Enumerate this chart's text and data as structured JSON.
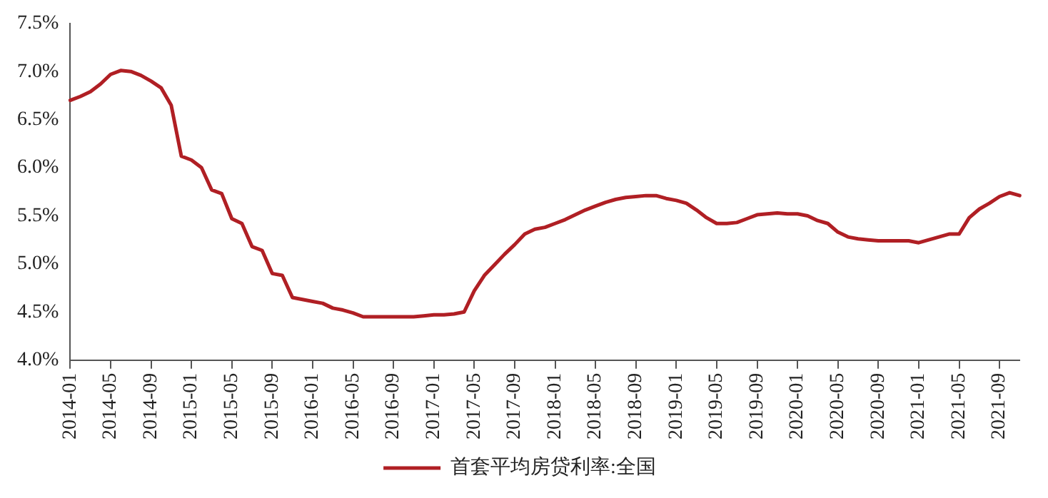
{
  "chart_data": {
    "type": "line",
    "categories": [
      "2014-01",
      null,
      null,
      null,
      "2014-05",
      null,
      null,
      null,
      "2014-09",
      null,
      null,
      null,
      "2015-01",
      null,
      null,
      null,
      "2015-05",
      null,
      null,
      null,
      "2015-09",
      null,
      null,
      null,
      "2016-01",
      null,
      null,
      null,
      "2016-05",
      null,
      null,
      null,
      "2016-09",
      null,
      null,
      null,
      "2017-01",
      null,
      null,
      null,
      "2017-05",
      null,
      null,
      null,
      "2017-09",
      null,
      null,
      null,
      "2018-01",
      null,
      null,
      null,
      "2018-05",
      null,
      null,
      null,
      "2018-09",
      null,
      null,
      null,
      "2019-01",
      null,
      null,
      null,
      "2019-05",
      null,
      null,
      null,
      "2019-09",
      null,
      null,
      null,
      "2020-01",
      null,
      null,
      null,
      "2020-05",
      null,
      null,
      null,
      "2020-09",
      null,
      null,
      null,
      "2021-01",
      null,
      null,
      null,
      "2021-05",
      null,
      null,
      null,
      "2021-09",
      null,
      null
    ],
    "series": [
      {
        "name": "首套平均房贷利率:全国",
        "color": "#b01f24",
        "values": [
          6.7,
          6.74,
          6.79,
          6.87,
          6.97,
          7.01,
          7.0,
          6.96,
          6.9,
          6.83,
          6.65,
          6.12,
          6.08,
          6.0,
          5.77,
          5.73,
          5.47,
          5.42,
          5.18,
          5.14,
          4.9,
          4.88,
          4.65,
          4.63,
          4.61,
          4.59,
          4.54,
          4.52,
          4.49,
          4.45,
          4.45,
          4.45,
          4.45,
          4.45,
          4.45,
          4.46,
          4.47,
          4.47,
          4.48,
          4.5,
          4.72,
          4.88,
          4.99,
          5.1,
          5.2,
          5.31,
          5.36,
          5.38,
          5.42,
          5.46,
          5.51,
          5.56,
          5.6,
          5.64,
          5.67,
          5.69,
          5.7,
          5.71,
          5.71,
          5.68,
          5.66,
          5.63,
          5.56,
          5.48,
          5.42,
          5.42,
          5.43,
          5.47,
          5.51,
          5.52,
          5.53,
          5.52,
          5.52,
          5.5,
          5.45,
          5.42,
          5.33,
          5.28,
          5.26,
          5.25,
          5.24,
          5.24,
          5.24,
          5.24,
          5.22,
          5.25,
          5.28,
          5.31,
          5.31,
          5.48,
          5.57,
          5.63,
          5.7,
          5.74,
          5.71
        ]
      }
    ],
    "ylim": [
      4.0,
      7.5
    ],
    "yticks": [
      {
        "value": 4.0,
        "label": "4.0%"
      },
      {
        "value": 4.5,
        "label": "4.5%"
      },
      {
        "value": 5.0,
        "label": "5.0%"
      },
      {
        "value": 5.5,
        "label": "5.5%"
      },
      {
        "value": 6.0,
        "label": "6.0%"
      },
      {
        "value": 6.5,
        "label": "6.5%"
      },
      {
        "value": 7.0,
        "label": "7.0%"
      },
      {
        "value": 7.5,
        "label": "7.5%"
      }
    ],
    "grid": false,
    "legend": "bottom",
    "marker": "none",
    "line_style": "solid"
  }
}
